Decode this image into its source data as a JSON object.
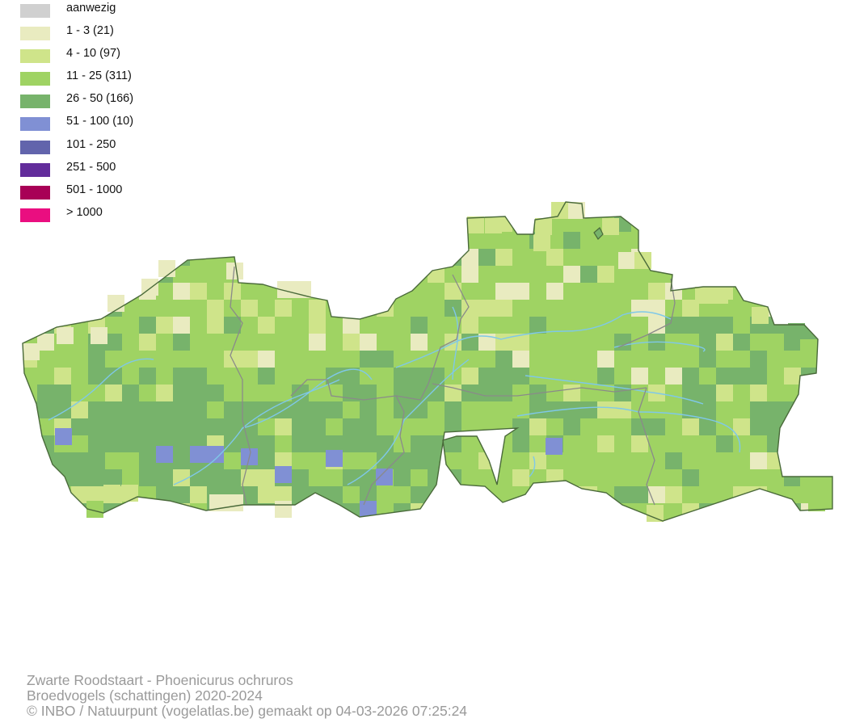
{
  "legend": {
    "items": [
      {
        "label": "aanwezig",
        "color": "#d0d0d0"
      },
      {
        "label": "1 - 3 (21)",
        "color": "#e9ebc0"
      },
      {
        "label": "4 - 10 (97)",
        "color": "#cfe48a"
      },
      {
        "label": "11 - 25 (311)",
        "color": "#9fd363"
      },
      {
        "label": "26 - 50 (166)",
        "color": "#77b36b"
      },
      {
        "label": "51 - 100 (10)",
        "color": "#8090d4"
      },
      {
        "label": "101 - 250",
        "color": "#6264ac"
      },
      {
        "label": "251 - 500",
        "color": "#622c9b"
      },
      {
        "label": "501 - 1000",
        "color": "#a80056"
      },
      {
        "label": "> 1000",
        "color": "#ea0e80"
      }
    ]
  },
  "map": {
    "border_color": "#4a6a3a",
    "province_border_color": "#8a8a8a",
    "river_color": "#7fc8e8"
  },
  "caption": {
    "line1": "Zwarte Roodstaart - Phoenicurus ochruros",
    "line2": "Broedvogels (schattingen) 2020-2024",
    "line3": "© INBO / Natuurpunt (vogelatlas.be) gemaakt op 04-03-2026 07:25:24"
  }
}
